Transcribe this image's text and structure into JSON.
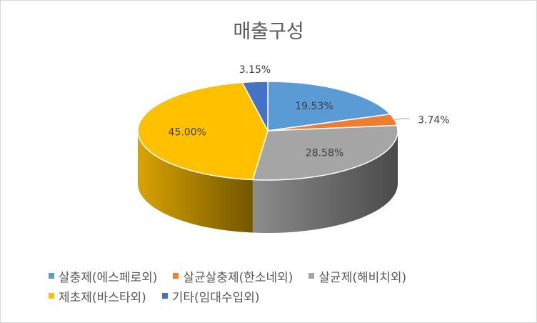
{
  "chart_data": {
    "type": "pie",
    "title": "매출구성",
    "slices": [
      {
        "label": "살충제(에스페로외)",
        "value": 19.53,
        "display": "19.53%",
        "color": "#5b9bd5"
      },
      {
        "label": "살균살충제(한소네외)",
        "value": 3.74,
        "display": "3.74%",
        "color": "#ed7d31"
      },
      {
        "label": "살균제(해비치외)",
        "value": 28.58,
        "display": "28.58%",
        "color": "#a5a5a5"
      },
      {
        "label": "제초제(바스타외)",
        "value": 45.0,
        "display": "45.00%",
        "color": "#ffc000"
      },
      {
        "label": "기타(임대수입외)",
        "value": 3.15,
        "display": "3.15%",
        "color": "#4472c4"
      }
    ],
    "legend_position": "bottom",
    "style": "3d"
  }
}
